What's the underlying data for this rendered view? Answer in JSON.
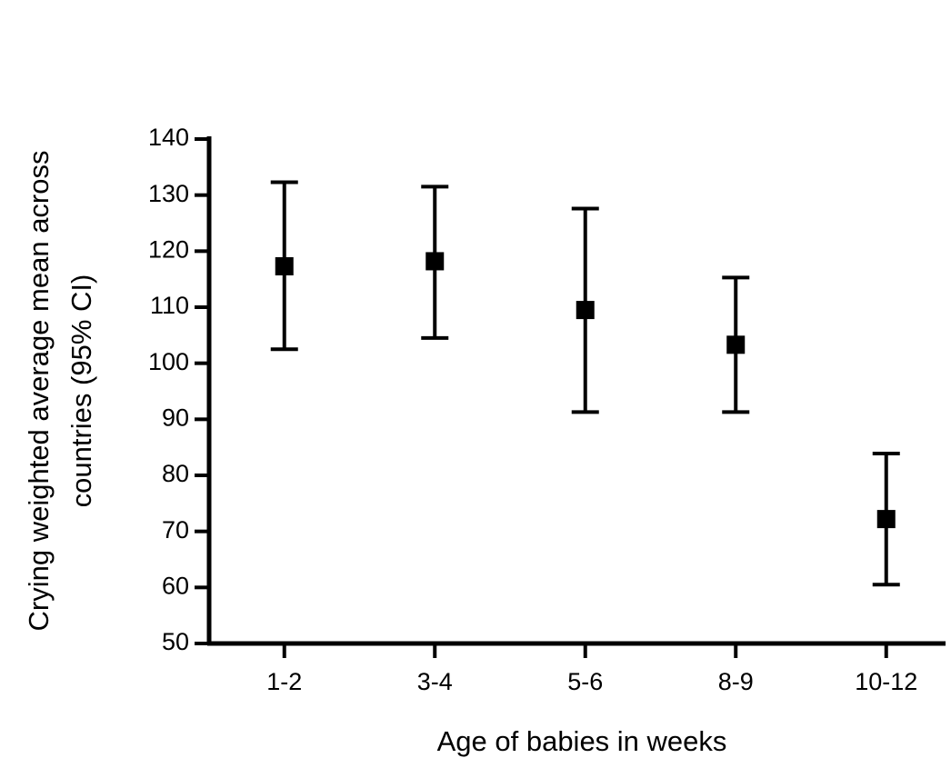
{
  "chart_data": {
    "type": "errorbar",
    "xlabel": "Age of babies in weeks",
    "ylabel": [
      "Crying weighted average mean across",
      "countries (95% CI)"
    ],
    "categories": [
      "1-2",
      "3-4",
      "5-6",
      "8-9",
      "10-12"
    ],
    "values": [
      117.3,
      118.2,
      109.5,
      103.3,
      72.2
    ],
    "ci_low": [
      102.5,
      104.5,
      91.3,
      91.3,
      60.5
    ],
    "ci_high": [
      132.3,
      131.5,
      127.6,
      115.3,
      83.9
    ],
    "color": "#000000",
    "ylim": [
      50,
      140
    ],
    "yticks": [
      50,
      60,
      70,
      80,
      90,
      100,
      110,
      120,
      130,
      140
    ]
  }
}
